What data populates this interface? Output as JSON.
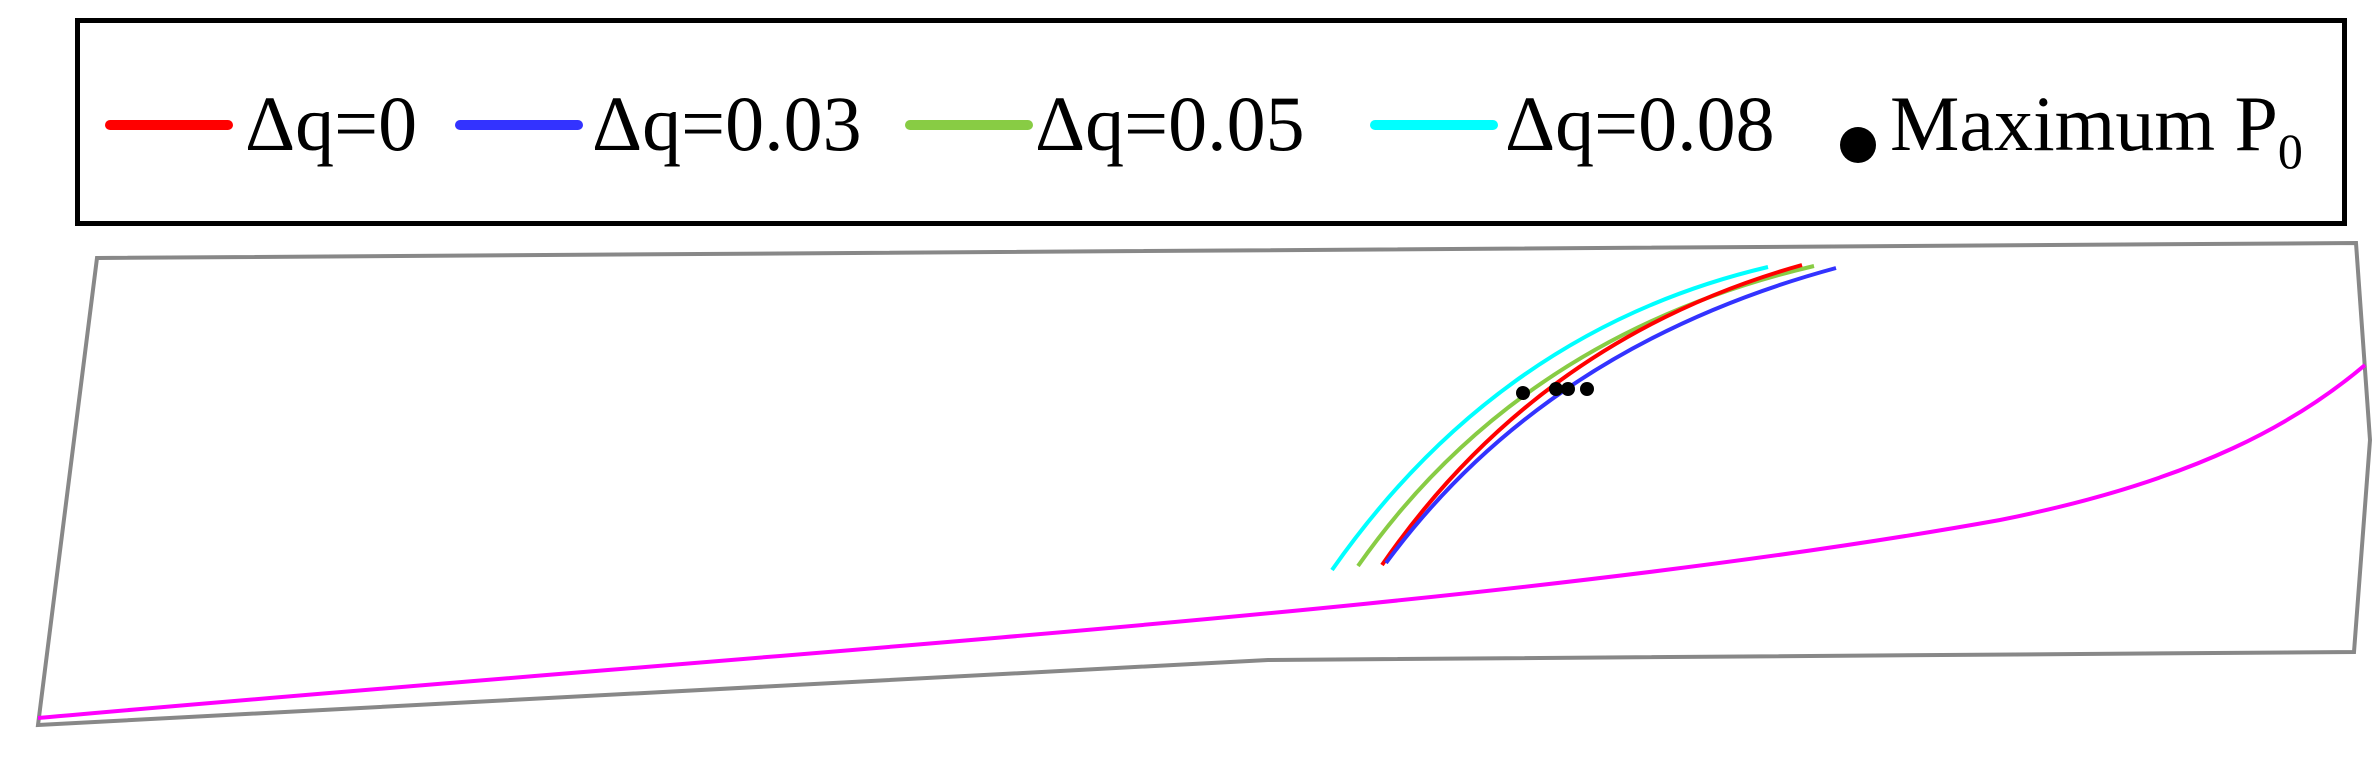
{
  "legend": {
    "items": [
      {
        "id": "dq0",
        "label": "Δq=0",
        "color": "#ff0000"
      },
      {
        "id": "dq3",
        "label": "Δq=0.03",
        "color": "#3333ff"
      },
      {
        "id": "dq5",
        "label": "Δq=0.05",
        "color": "#88cc44"
      },
      {
        "id": "dq8",
        "label": "Δq=0.08",
        "color": "#00ffff"
      }
    ],
    "marker_label": "Maximum P",
    "marker_subscript": "0",
    "marker_color": "#000000"
  },
  "colors": {
    "outline": "#888888",
    "boundary_curve": "#ff00ff",
    "frame": "#000000"
  }
}
